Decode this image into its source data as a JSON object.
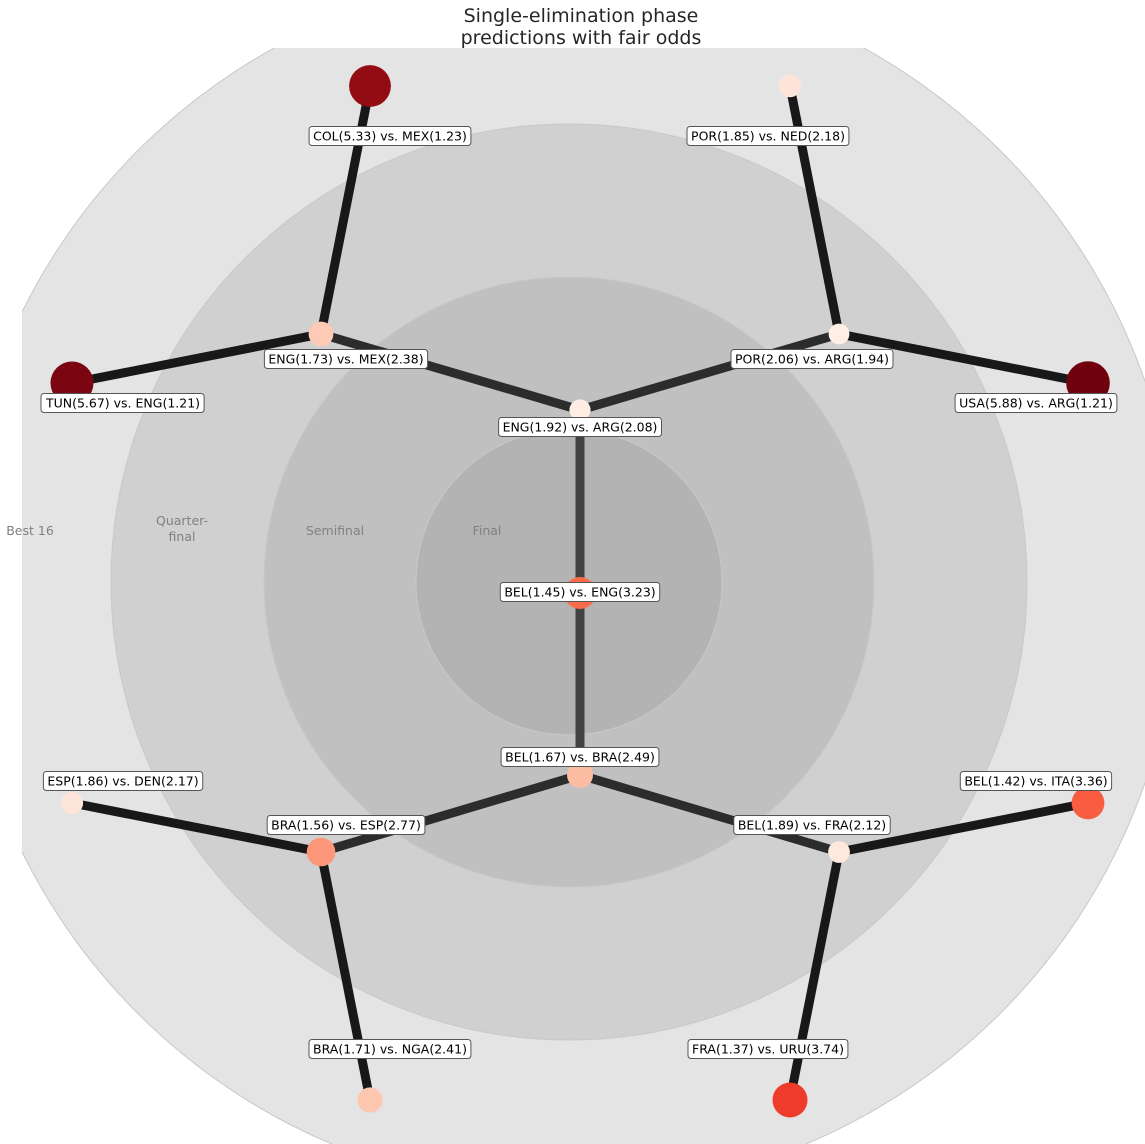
{
  "title": {
    "line1": "Single-elimination phase",
    "line2": "predictions with fair odds"
  },
  "rings": [
    {
      "label": "Best 16"
    },
    {
      "label": "Quarter-\nfinal"
    },
    {
      "label": "Semifinal"
    },
    {
      "label": "Final"
    }
  ],
  "colors": {
    "ring_outer": "#e4e4e4",
    "ring_quarter": "#d0d0d0",
    "ring_semi": "#c0c0c0",
    "ring_final": "#b3b3b3",
    "edge_outer": "#181818",
    "edge_mid": "#2c2c2c",
    "edge_inner": "#424242",
    "edge_center": "#4c4c4c",
    "colormap": "Reds"
  },
  "chart_data": {
    "type": "tree",
    "matches": [
      {
        "id": "final",
        "round": "Final",
        "team_a": "BEL",
        "odds_a": 1.45,
        "team_b": "ENG",
        "odds_b": 3.23,
        "parent": null
      },
      {
        "id": "sf_top",
        "round": "Semifinal",
        "team_a": "ENG",
        "odds_a": 1.92,
        "team_b": "ARG",
        "odds_b": 2.08,
        "parent": "final"
      },
      {
        "id": "sf_bottom",
        "round": "Semifinal",
        "team_a": "BEL",
        "odds_a": 1.67,
        "team_b": "BRA",
        "odds_b": 2.49,
        "parent": "final"
      },
      {
        "id": "qf_tl",
        "round": "Quarter-final",
        "team_a": "ENG",
        "odds_a": 1.73,
        "team_b": "MEX",
        "odds_b": 2.38,
        "parent": "sf_top"
      },
      {
        "id": "qf_tr",
        "round": "Quarter-final",
        "team_a": "POR",
        "odds_a": 2.06,
        "team_b": "ARG",
        "odds_b": 1.94,
        "parent": "sf_top"
      },
      {
        "id": "qf_bl",
        "round": "Quarter-final",
        "team_a": "BRA",
        "odds_a": 1.56,
        "team_b": "ESP",
        "odds_b": 2.77,
        "parent": "sf_bottom"
      },
      {
        "id": "qf_br",
        "round": "Quarter-final",
        "team_a": "BEL",
        "odds_a": 1.89,
        "team_b": "FRA",
        "odds_b": 2.12,
        "parent": "sf_bottom"
      },
      {
        "id": "r16_1",
        "round": "Best 16",
        "team_a": "COL",
        "odds_a": 5.33,
        "team_b": "MEX",
        "odds_b": 1.23,
        "parent": "qf_tl"
      },
      {
        "id": "r16_2",
        "round": "Best 16",
        "team_a": "TUN",
        "odds_a": 5.67,
        "team_b": "ENG",
        "odds_b": 1.21,
        "parent": "qf_tl"
      },
      {
        "id": "r16_3",
        "round": "Best 16",
        "team_a": "POR",
        "odds_a": 1.85,
        "team_b": "NED",
        "odds_b": 2.18,
        "parent": "qf_tr"
      },
      {
        "id": "r16_4",
        "round": "Best 16",
        "team_a": "USA",
        "odds_a": 5.88,
        "team_b": "ARG",
        "odds_b": 1.21,
        "parent": "qf_tr"
      },
      {
        "id": "r16_5",
        "round": "Best 16",
        "team_a": "ESP",
        "odds_a": 1.86,
        "team_b": "DEN",
        "odds_b": 2.17,
        "parent": "qf_bl"
      },
      {
        "id": "r16_6",
        "round": "Best 16",
        "team_a": "BRA",
        "odds_a": 1.71,
        "team_b": "NGA",
        "odds_b": 2.41,
        "parent": "qf_bl"
      },
      {
        "id": "r16_7",
        "round": "Best 16",
        "team_a": "BEL",
        "odds_a": 1.42,
        "team_b": "ITA",
        "odds_b": 3.36,
        "parent": "qf_br"
      },
      {
        "id": "r16_8",
        "round": "Best 16",
        "team_a": "FRA",
        "odds_a": 1.37,
        "team_b": "URU",
        "odds_b": 3.74,
        "parent": "qf_br"
      }
    ]
  }
}
